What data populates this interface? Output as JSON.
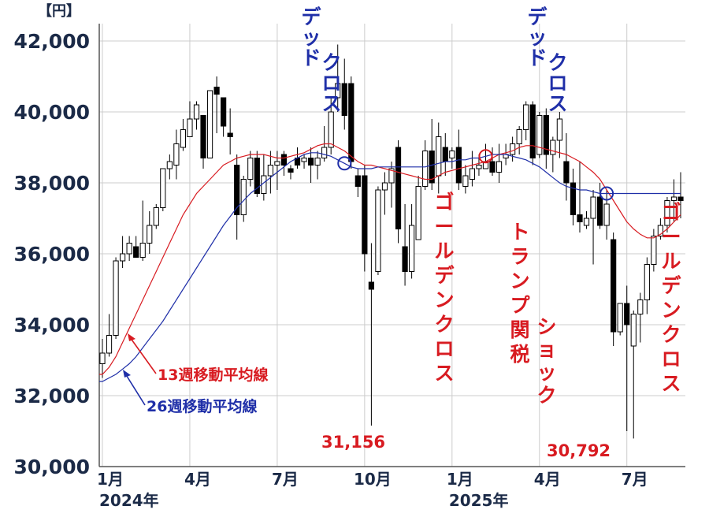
{
  "chart_data": {
    "type": "candlestick",
    "unit_label": "【円】",
    "ylim": [
      30000,
      42000
    ],
    "y_ticks": [
      "30,000",
      "32,000",
      "34,000",
      "36,000",
      "38,000",
      "40,000",
      "42,000"
    ],
    "x_ticks": [
      {
        "label": "1月",
        "week": 0
      },
      {
        "label": "4月",
        "week": 13
      },
      {
        "label": "7月",
        "week": 26
      },
      {
        "label": "10月",
        "week": 39
      },
      {
        "label": "1月",
        "week": 52
      },
      {
        "label": "4月",
        "week": 65
      },
      {
        "label": "7月",
        "week": 78
      }
    ],
    "year_labels": [
      {
        "label": "2024年",
        "week": 0
      },
      {
        "label": "2025年",
        "week": 52
      }
    ],
    "grid": true,
    "candles": [
      [
        32900,
        33600,
        32500,
        33200
      ],
      [
        33200,
        34300,
        33100,
        33700
      ],
      [
        33700,
        35900,
        33600,
        35800
      ],
      [
        35800,
        36500,
        35600,
        36000
      ],
      [
        36000,
        36500,
        35800,
        36300
      ],
      [
        36200,
        36500,
        35900,
        35900
      ],
      [
        35900,
        37500,
        35800,
        36300
      ],
      [
        36300,
        37200,
        36000,
        36800
      ],
      [
        36800,
        37400,
        36700,
        37300
      ],
      [
        37300,
        38400,
        37200,
        38400
      ],
      [
        38400,
        38800,
        38100,
        38600
      ],
      [
        38500,
        39500,
        38100,
        39100
      ],
      [
        39000,
        39800,
        38900,
        39500
      ],
      [
        39300,
        40300,
        39300,
        39800
      ],
      [
        39800,
        40300,
        39500,
        40200
      ],
      [
        39900,
        39900,
        38400,
        38700
      ],
      [
        38700,
        40600,
        38700,
        40600
      ],
      [
        40700,
        41000,
        39400,
        40500
      ],
      [
        40400,
        40400,
        39300,
        39600
      ],
      [
        39400,
        40100,
        38800,
        39300
      ],
      [
        38500,
        38800,
        36400,
        37100
      ],
      [
        37100,
        38200,
        36900,
        38100
      ],
      [
        38100,
        38900,
        37900,
        38700
      ],
      [
        38700,
        38900,
        37600,
        37700
      ],
      [
        37700,
        38800,
        37500,
        38200
      ],
      [
        38200,
        38900,
        37700,
        38500
      ],
      [
        38500,
        38900,
        37800,
        38600
      ],
      [
        38800,
        38900,
        38200,
        38500
      ],
      [
        38400,
        38500,
        38100,
        38300
      ],
      [
        38700,
        39000,
        38400,
        38500
      ],
      [
        38600,
        38800,
        38400,
        38700
      ],
      [
        38700,
        39000,
        38000,
        38500
      ],
      [
        38500,
        38900,
        38100,
        38700
      ],
      [
        38700,
        39600,
        38600,
        39000
      ],
      [
        39000,
        40400,
        38800,
        40000
      ],
      [
        40400,
        41900,
        40000,
        40800
      ],
      [
        40800,
        41500,
        39500,
        39900
      ],
      [
        40800,
        41000,
        38400,
        38600
      ],
      [
        38200,
        38400,
        37600,
        37900
      ],
      [
        38200,
        38500,
        35500,
        36000
      ],
      [
        35200,
        36300,
        31156,
        35000
      ],
      [
        35500,
        37900,
        35400,
        37800
      ],
      [
        37800,
        38300,
        37100,
        38000
      ],
      [
        38000,
        38600,
        37300,
        38400
      ],
      [
        39000,
        39200,
        36300,
        36700
      ],
      [
        36200,
        37400,
        35100,
        35500
      ],
      [
        35500,
        37400,
        35300,
        36800
      ],
      [
        36400,
        38200,
        36400,
        37900
      ],
      [
        37900,
        39200,
        37800,
        38900
      ],
      [
        38900,
        39800,
        37800,
        38000
      ],
      [
        38200,
        39700,
        37700,
        39300
      ],
      [
        39000,
        39400,
        38200,
        38600
      ],
      [
        38700,
        39000,
        38400,
        38900
      ],
      [
        39000,
        39500,
        37800,
        38000
      ],
      [
        37900,
        38500,
        37700,
        38200
      ],
      [
        38100,
        38900,
        37900,
        38400
      ],
      [
        38400,
        38800,
        38200,
        38500
      ],
      [
        38400,
        39100,
        38400,
        38600
      ],
      [
        38600,
        39000,
        38200,
        38300
      ],
      [
        38300,
        39100,
        38000,
        38600
      ],
      [
        38700,
        39100,
        38500,
        38800
      ],
      [
        38800,
        39300,
        38600,
        39100
      ],
      [
        39100,
        39600,
        38800,
        39500
      ],
      [
        39500,
        40300,
        39200,
        40200
      ],
      [
        40200,
        40300,
        38500,
        38700
      ],
      [
        38800,
        40000,
        38700,
        39900
      ],
      [
        39900,
        40100,
        38400,
        38800
      ],
      [
        38800,
        39300,
        38300,
        39200
      ],
      [
        39200,
        40000,
        38700,
        39800
      ],
      [
        38600,
        39400,
        37500,
        38000
      ],
      [
        38000,
        38400,
        36800,
        37100
      ],
      [
        37100,
        38600,
        36600,
        36900
      ],
      [
        36800,
        37200,
        36700,
        37000
      ],
      [
        37000,
        37800,
        35700,
        37600
      ],
      [
        37600,
        38000,
        36700,
        36800
      ],
      [
        36800,
        37800,
        36400,
        37400
      ],
      [
        36400,
        36600,
        33400,
        33800
      ],
      [
        33800,
        34600,
        33700,
        34600
      ],
      [
        34600,
        35100,
        31000,
        34000
      ],
      [
        33400,
        34400,
        30792,
        34300
      ],
      [
        34300,
        34900,
        33500,
        34700
      ],
      [
        34700,
        35900,
        34300,
        35700
      ],
      [
        35700,
        36700,
        35500,
        36500
      ],
      [
        36500,
        37000,
        36400,
        36800
      ],
      [
        36800,
        37600,
        36600,
        37500
      ],
      [
        37500,
        38100,
        36900,
        37600
      ],
      [
        37600,
        38300,
        37000,
        37500
      ]
    ],
    "series": [
      {
        "name": "13週移動平均線",
        "color": "#d81b21",
        "values": [
          32600,
          32800,
          33100,
          33500,
          33900,
          34300,
          34700,
          35100,
          35500,
          35900,
          36300,
          36700,
          37100,
          37400,
          37700,
          37900,
          38100,
          38300,
          38500,
          38600,
          38700,
          38750,
          38800,
          38800,
          38800,
          38750,
          38700,
          38700,
          38750,
          38800,
          38850,
          38950,
          39050,
          39100,
          39100,
          39000,
          38900,
          38750,
          38600,
          38500,
          38500,
          38450,
          38400,
          38350,
          38300,
          38250,
          38200,
          38150,
          38100,
          38100,
          38200,
          38300,
          38350,
          38400,
          38450,
          38500,
          38550,
          38600,
          38700,
          38800,
          38850,
          38900,
          39000,
          39050,
          39050,
          39000,
          38950,
          38900,
          38850,
          38800,
          38700,
          38600,
          38450,
          38300,
          38100,
          37800,
          37500,
          37200,
          36900,
          36700,
          36550,
          36450,
          36450,
          36550,
          36700,
          36900,
          37100
        ]
      },
      {
        "name": "26週移動平均線",
        "color": "#1f2fa8",
        "values": [
          32400,
          32500,
          32600,
          32750,
          32900,
          33100,
          33350,
          33600,
          33850,
          34100,
          34400,
          34700,
          35000,
          35300,
          35600,
          35900,
          36200,
          36500,
          36800,
          37050,
          37300,
          37500,
          37700,
          37850,
          38000,
          38150,
          38300,
          38450,
          38600,
          38700,
          38800,
          38850,
          38850,
          38800,
          38750,
          38650,
          38550,
          38450,
          38400,
          38400,
          38400,
          38450,
          38450,
          38450,
          38450,
          38450,
          38450,
          38450,
          38450,
          38500,
          38550,
          38600,
          38600,
          38650,
          38650,
          38700,
          38700,
          38750,
          38800,
          38800,
          38800,
          38750,
          38700,
          38650,
          38550,
          38450,
          38300,
          38150,
          38000,
          37900,
          37850,
          37800,
          37800,
          37750,
          37700,
          37700,
          37700,
          37700,
          37700,
          37700,
          37700,
          37700,
          37700,
          37700,
          37700,
          37700,
          37700
        ]
      }
    ],
    "ma_labels": {
      "ma13": "13週移動平均線",
      "ma26": "26週移動平均線"
    },
    "annotations": {
      "dead_cross_1": "デッドクロス",
      "dead_cross_2": "デッドクロス",
      "golden_cross_1": "ゴールデンクロス",
      "golden_cross_2": "ゴールデンクロス",
      "tariff": "トランプ関税",
      "shock": "ショック",
      "low_1": "31,156",
      "low_2": "30,792"
    },
    "colors": {
      "grid": "#cccccc",
      "up": "#ffffff",
      "down": "#000000",
      "text": "#1b2a47"
    }
  }
}
